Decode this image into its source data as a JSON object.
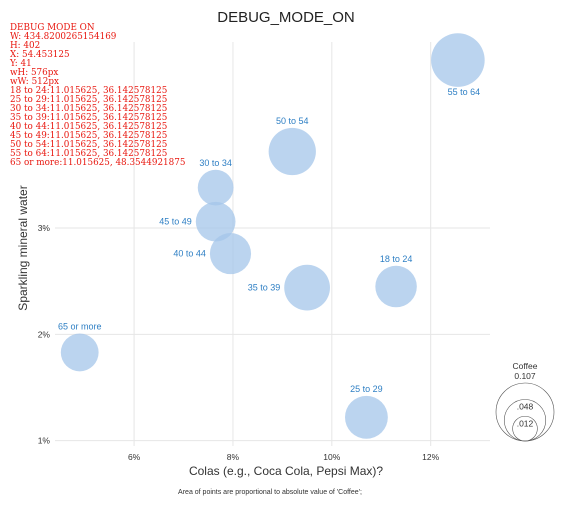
{
  "page_title": "DEBUG_MODE_ON",
  "debug_lines": [
    "DEBUG MODE ON",
    "W: 434.8200265154169",
    "H: 402",
    "X: 54.453125",
    "Y: 41",
    "wH: 576px",
    "wW: 512px",
    "18 to 24:11.015625, 36.142578125",
    "25 to 29:11.015625, 36.142578125",
    "30 to 34:11.015625, 36.142578125",
    "35 to 39:11.015625, 36.142578125",
    "40 to 44:11.015625, 36.142578125",
    "45 to 49:11.015625, 36.142578125",
    "50 to 54:11.015625, 36.142578125",
    "55 to 64:11.015625, 36.142578125",
    "65 or more:11.015625, 48.3544921875"
  ],
  "footnote": "Area of points are proportional to absolute value of 'Coffee';",
  "colors": {
    "bubble": "#a4c6ea",
    "label": "#2e7fc4",
    "debug": "#e8170f",
    "grid": "#e6e6e6",
    "text": "#333333"
  },
  "chart_data": {
    "type": "scatter",
    "title": "DEBUG_MODE_ON",
    "xlabel": "Colas (e.g., Coca Cola, Pepsi Max)?",
    "ylabel": "Sparkling mineral water",
    "x_unit": "%",
    "y_unit": "%",
    "xlim": [
      4.4,
      13.2
    ],
    "ylim": [
      0.95,
      4.75
    ],
    "x_ticks": [
      6,
      8,
      10,
      12
    ],
    "y_ticks": [
      1,
      2,
      3
    ],
    "x_tick_labels": [
      "6%",
      "8%",
      "10%",
      "12%"
    ],
    "y_tick_labels": [
      "1%",
      "2%",
      "3%"
    ],
    "grid": true,
    "size_variable": "Coffee",
    "size_legend": {
      "title": "Coffee",
      "values": [
        0.107,
        0.048,
        0.012
      ],
      "labels": [
        "0.107",
        ".048",
        ".012"
      ],
      "placement": "bottom-right"
    },
    "points": [
      {
        "label": "18 to 24",
        "x": 11.3,
        "y": 2.45,
        "size": 0.048
      },
      {
        "label": "25 to 29",
        "x": 10.7,
        "y": 1.22,
        "size": 0.052
      },
      {
        "label": "30 to 34",
        "x": 7.65,
        "y": 3.38,
        "size": 0.033
      },
      {
        "label": "35 to 39",
        "x": 9.5,
        "y": 2.44,
        "size": 0.061
      },
      {
        "label": "40 to 44",
        "x": 7.95,
        "y": 2.76,
        "size": 0.047
      },
      {
        "label": "45 to 49",
        "x": 7.65,
        "y": 3.06,
        "size": 0.043
      },
      {
        "label": "50 to 54",
        "x": 9.2,
        "y": 3.72,
        "size": 0.066
      },
      {
        "label": "55 to 64",
        "x": 12.55,
        "y": 4.58,
        "size": 0.089
      },
      {
        "label": "65 or more",
        "x": 4.9,
        "y": 1.83,
        "size": 0.038
      }
    ]
  }
}
